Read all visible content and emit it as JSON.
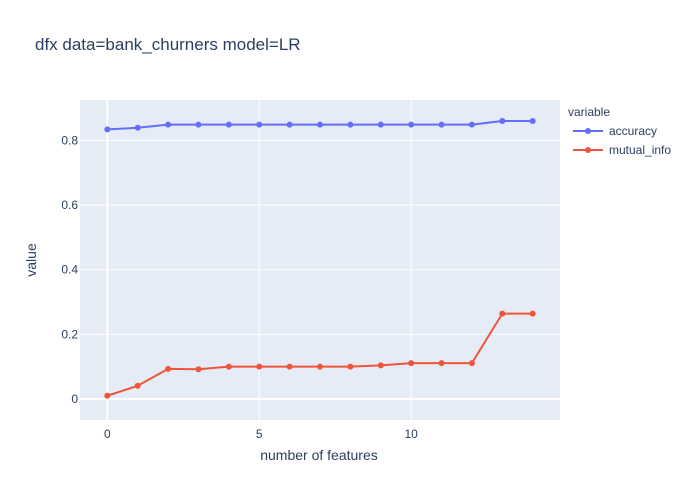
{
  "chart_data": {
    "type": "line",
    "title": "dfx data=bank_churners model=LR",
    "xlabel": "number of features",
    "ylabel": "value",
    "xlim": [
      -0.9,
      14.9
    ],
    "ylim": [
      -0.065,
      0.925
    ],
    "xticks": [
      0,
      5,
      10
    ],
    "yticks": [
      0,
      0.2,
      0.4,
      0.6,
      0.8
    ],
    "xtick_labels": [
      "0",
      "5",
      "10"
    ],
    "ytick_labels": [
      "0",
      "0.2",
      "0.4",
      "0.6",
      "0.8"
    ],
    "grid": true,
    "legend_title": "variable",
    "legend_position": "right",
    "x": [
      0,
      1,
      2,
      3,
      4,
      5,
      6,
      7,
      8,
      9,
      10,
      11,
      12,
      13,
      14
    ],
    "series": [
      {
        "name": "accuracy",
        "color": "#636efa",
        "values": [
          0.834,
          0.839,
          0.849,
          0.849,
          0.849,
          0.849,
          0.849,
          0.849,
          0.849,
          0.849,
          0.849,
          0.849,
          0.849,
          0.86,
          0.86
        ]
      },
      {
        "name": "mutual_info",
        "color": "#ef553b",
        "values": [
          0.01,
          0.041,
          0.093,
          0.092,
          0.1,
          0.1,
          0.1,
          0.1,
          0.1,
          0.104,
          0.111,
          0.111,
          0.111,
          0.264,
          0.264
        ]
      }
    ]
  }
}
